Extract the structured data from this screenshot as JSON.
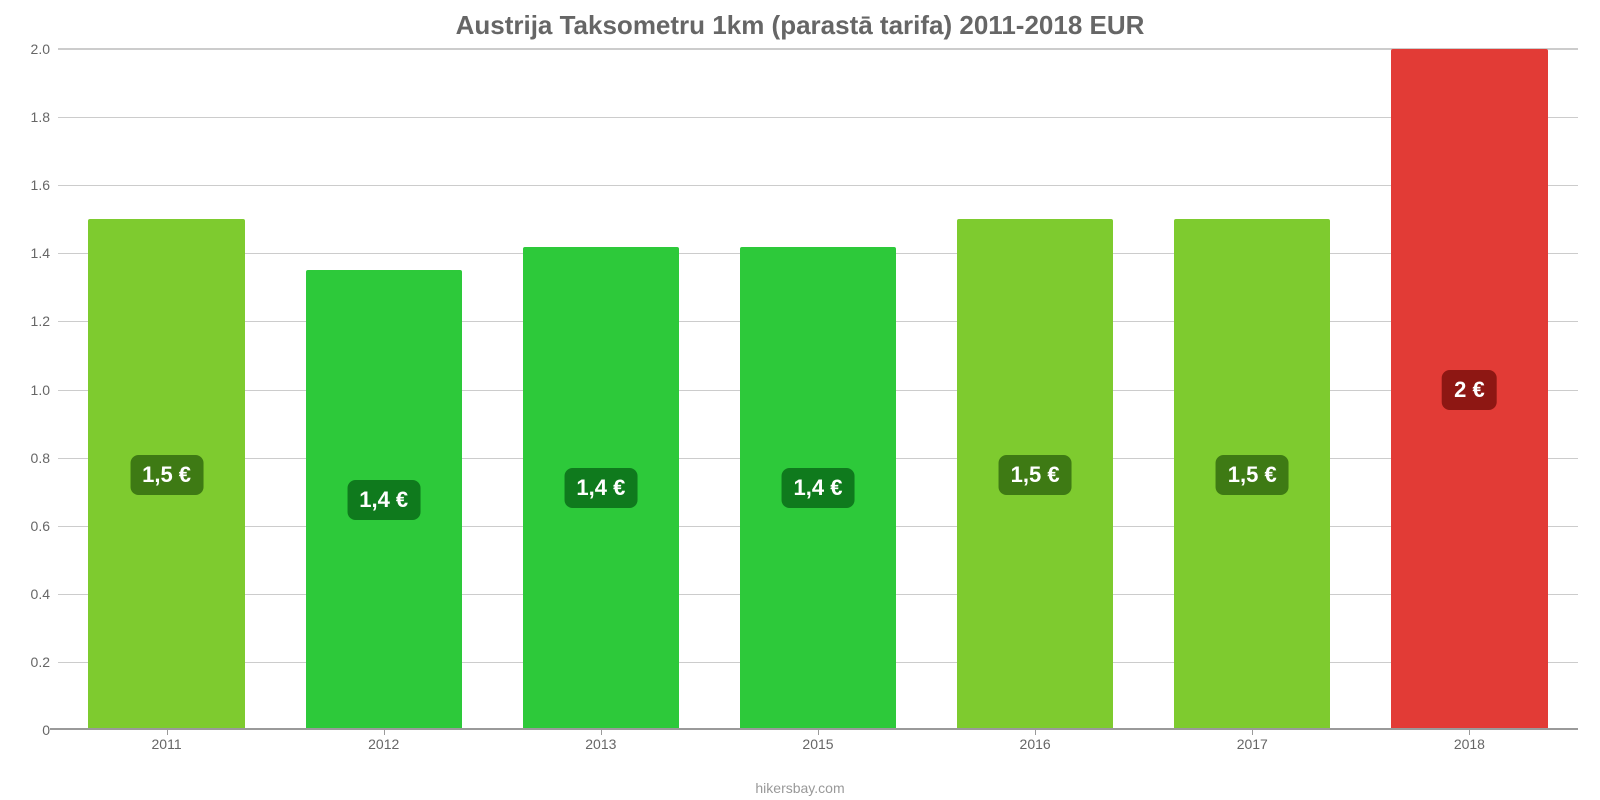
{
  "chart": {
    "type": "bar",
    "title": "Austrija Taksometru 1km (parastā tarifa) 2011-2018 EUR",
    "title_color": "#666666",
    "title_fontsize": 26,
    "background_color": "#ffffff",
    "ylim": [
      0,
      2.0
    ],
    "ytick_step": 0.2,
    "yticks": [
      {
        "v": 0,
        "label": "0"
      },
      {
        "v": 0.2,
        "label": "0.2"
      },
      {
        "v": 0.4,
        "label": "0.4"
      },
      {
        "v": 0.6,
        "label": "0.6"
      },
      {
        "v": 0.8,
        "label": "0.8"
      },
      {
        "v": 1.0,
        "label": "1.0"
      },
      {
        "v": 1.2,
        "label": "1.2"
      },
      {
        "v": 1.4,
        "label": "1.4"
      },
      {
        "v": 1.6,
        "label": "1.6"
      },
      {
        "v": 1.8,
        "label": "1.8"
      },
      {
        "v": 2.0,
        "label": "2.0"
      }
    ],
    "grid_color": "#cccccc",
    "axis_color": "#9a9a9a",
    "tick_label_color": "#666666",
    "tick_fontsize": 14,
    "bar_width_pct": 72,
    "value_label_fontsize": 22,
    "value_label_text_color": "#ffffff",
    "attribution": "hikersbay.com",
    "attribution_color": "#999999",
    "bars": [
      {
        "category": "2011",
        "value": 1.5,
        "display": "1,5 €",
        "fill": "#7ecb2f",
        "badge_bg": "#3e7a14"
      },
      {
        "category": "2012",
        "value": 1.35,
        "display": "1,4 €",
        "fill": "#2dc93a",
        "badge_bg": "#0f7a1d"
      },
      {
        "category": "2013",
        "value": 1.42,
        "display": "1,4 €",
        "fill": "#2dc93a",
        "badge_bg": "#0f7a1d"
      },
      {
        "category": "2015",
        "value": 1.42,
        "display": "1,4 €",
        "fill": "#2dc93a",
        "badge_bg": "#0f7a1d"
      },
      {
        "category": "2016",
        "value": 1.5,
        "display": "1,5 €",
        "fill": "#7ecb2f",
        "badge_bg": "#3e7a14"
      },
      {
        "category": "2017",
        "value": 1.5,
        "display": "1,5 €",
        "fill": "#7ecb2f",
        "badge_bg": "#3e7a14"
      },
      {
        "category": "2018",
        "value": 2.0,
        "display": "2 €",
        "fill": "#e23b36",
        "badge_bg": "#8e1713"
      }
    ]
  }
}
